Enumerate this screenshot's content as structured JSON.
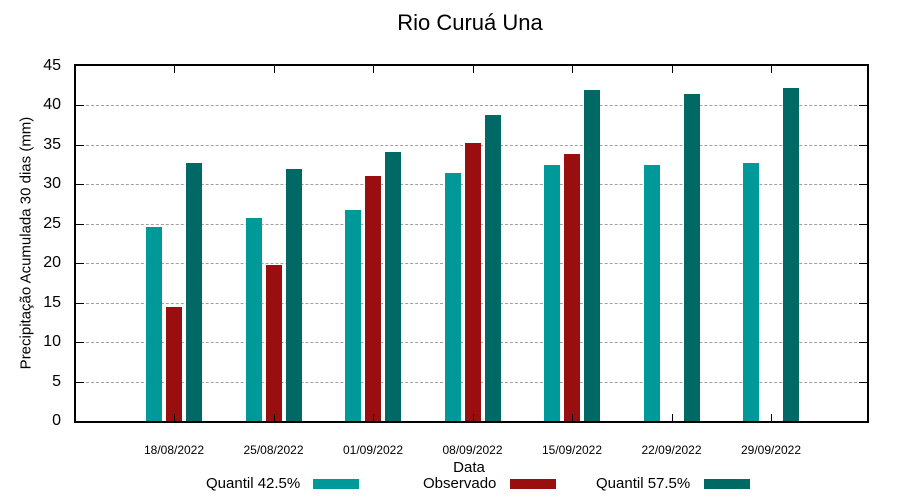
{
  "chart_data": {
    "type": "bar",
    "title": "Rio Curuá Una",
    "xlabel": "Data",
    "ylabel": "Precipitação Acumulada 30 dias (mm)",
    "ylim": [
      0,
      45
    ],
    "yticks": [
      0,
      5,
      10,
      15,
      20,
      25,
      30,
      35,
      40,
      45
    ],
    "grid": true,
    "legend_position": "bottom",
    "categories": [
      "18/08/2022",
      "25/08/2022",
      "01/09/2022",
      "08/09/2022",
      "15/09/2022",
      "22/09/2022",
      "29/09/2022"
    ],
    "series": [
      {
        "name": "Quantil 42.5%",
        "color": "#009999",
        "values": [
          24.6,
          25.7,
          26.7,
          31.5,
          32.4,
          32.4,
          32.7
        ]
      },
      {
        "name": "Observado",
        "color": "#990f10",
        "values": [
          14.4,
          19.8,
          31.1,
          35.3,
          33.9,
          null,
          null
        ]
      },
      {
        "name": "Quantil 57.5%",
        "color": "#006966",
        "values": [
          32.7,
          31.9,
          34.1,
          38.8,
          42.0,
          41.4,
          42.2
        ]
      }
    ]
  },
  "legend": [
    {
      "label": "Quantil 42.5%",
      "color": "#009999"
    },
    {
      "label": "Observado",
      "color": "#990f10"
    },
    {
      "label": "Quantil 57.5%",
      "color": "#006966"
    }
  ]
}
